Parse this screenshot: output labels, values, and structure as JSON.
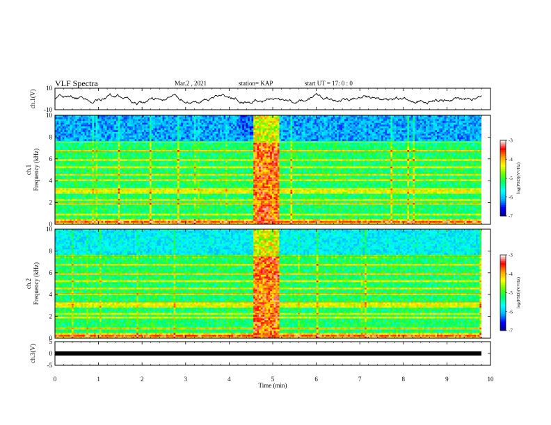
{
  "header": {
    "title": "VLF Spectra",
    "date": "Mar.2  , 2021",
    "station": "station= KAP",
    "start_time": "start  UT =   17: 0  : 0"
  },
  "chart_data": [
    {
      "type": "line",
      "ylabel": "ch.1(V)",
      "ylim": [
        -10,
        10
      ],
      "yticks": [
        "10",
        "-10"
      ],
      "xlim": [
        0,
        10
      ],
      "color": "#000000"
    },
    {
      "type": "heatmap",
      "ylabel": "ch.1\nFrequency (kHz)",
      "ylim": [
        0,
        10
      ],
      "yticks": [
        "0",
        "2",
        "4",
        "6",
        "8",
        "10"
      ],
      "xlim": [
        0,
        10
      ],
      "colorbar": {
        "label": "log(PSD)(V²/Hz)",
        "range": [
          -7,
          -3
        ],
        "ticks": [
          "-3",
          "-4",
          "-5",
          "-6",
          "-7"
        ]
      },
      "features": {
        "broadband_burst_min": [
          4.55,
          5.15
        ],
        "dominant_level": -5.2,
        "high_freq_level_kHz_above": 7.6
      }
    },
    {
      "type": "heatmap",
      "ylabel": "ch.2\nFrequency (kHz)",
      "ylim": [
        0,
        10
      ],
      "yticks": [
        "0",
        "2",
        "4",
        "6",
        "8",
        "10"
      ],
      "xlim": [
        0,
        10
      ],
      "colorbar": {
        "label": "log(PSD)(V²/Hz)",
        "range": [
          -7,
          -3
        ],
        "ticks": [
          "-3",
          "-4",
          "-5",
          "-6",
          "-7"
        ]
      },
      "features": {
        "broadband_burst_min": [
          4.55,
          5.15
        ],
        "dominant_level": -5.2
      }
    },
    {
      "type": "line",
      "ylabel": "ch.3(V)",
      "ylim": [
        -5,
        5
      ],
      "yticks": [
        "5",
        "0",
        "-5"
      ],
      "xlim": [
        0,
        10
      ],
      "xlabel": "Time  (min)",
      "xticks": [
        "0",
        "1",
        "2",
        "3",
        "4",
        "5",
        "6",
        "7",
        "8",
        "9",
        "10"
      ],
      "values_constant": 0
    }
  ],
  "colors": {
    "signal_line": "#000000",
    "colormap": [
      "#00008b",
      "#0000ff",
      "#00b4ff",
      "#00ffff",
      "#00ff64",
      "#64ff00",
      "#ffff00",
      "#ffa000",
      "#ff0000",
      "#ffffff"
    ]
  }
}
